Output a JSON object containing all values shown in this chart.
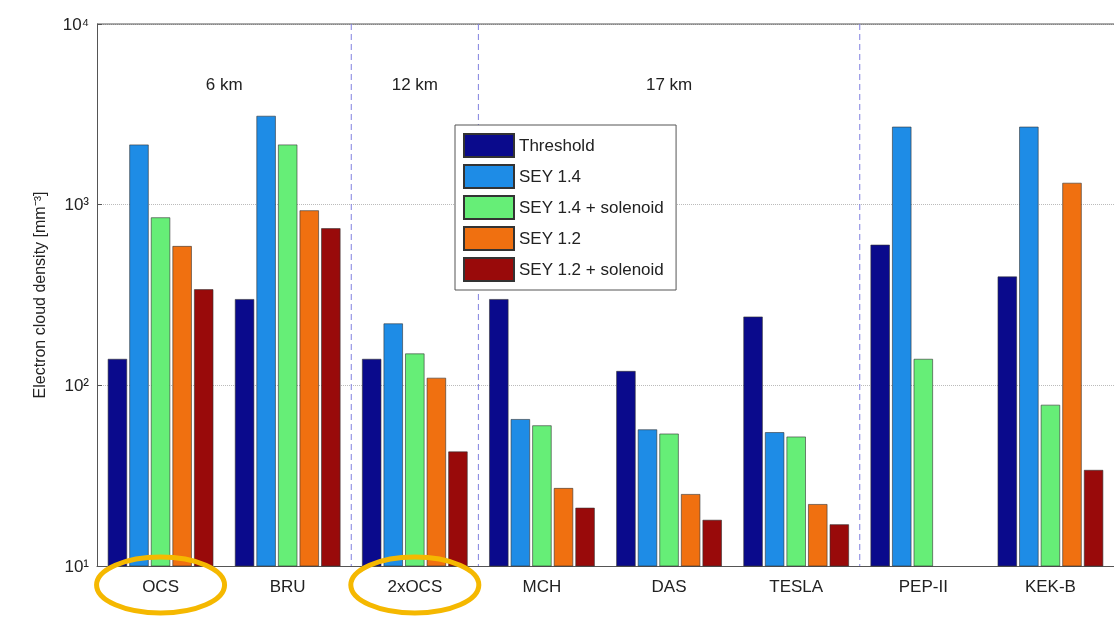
{
  "chart_data": {
    "type": "bar",
    "ylabel": "Electron cloud density [mm⁻³]",
    "categories": [
      "OCS",
      "BRU",
      "2xOCS",
      "MCH",
      "DAS",
      "TESLA",
      "PEP-II",
      "KEK-B"
    ],
    "series": [
      {
        "name": "Threshold",
        "color": "#0a0a8c",
        "values": [
          140,
          300,
          140,
          300,
          120,
          240,
          600,
          400
        ]
      },
      {
        "name": "SEY 1.4",
        "color": "#1e8ce6",
        "values": [
          2150,
          3100,
          220,
          65,
          57,
          55,
          2700,
          2700
        ]
      },
      {
        "name": "SEY 1.4 + solenoid",
        "color": "#66ee77",
        "values": [
          850,
          2150,
          150,
          60,
          54,
          52,
          140,
          78
        ]
      },
      {
        "name": "SEY 1.2",
        "color": "#f07010",
        "values": [
          590,
          930,
          110,
          27,
          25,
          22,
          null,
          1320
        ]
      },
      {
        "name": "SEY 1.2 + solenoid",
        "color": "#990a0a",
        "values": [
          340,
          740,
          43,
          21,
          18,
          17,
          null,
          34
        ]
      }
    ],
    "log": true,
    "ylim": [
      10,
      10000
    ],
    "yticks": [
      {
        "value": 10,
        "label": "10¹"
      },
      {
        "value": 100,
        "label": "10²"
      },
      {
        "value": 1000,
        "label": "10³"
      },
      {
        "value": 10000,
        "label": "10⁴"
      }
    ],
    "grid": "y",
    "legend": "top",
    "annotations": [
      "6 km",
      "12 km",
      "17 km"
    ]
  }
}
